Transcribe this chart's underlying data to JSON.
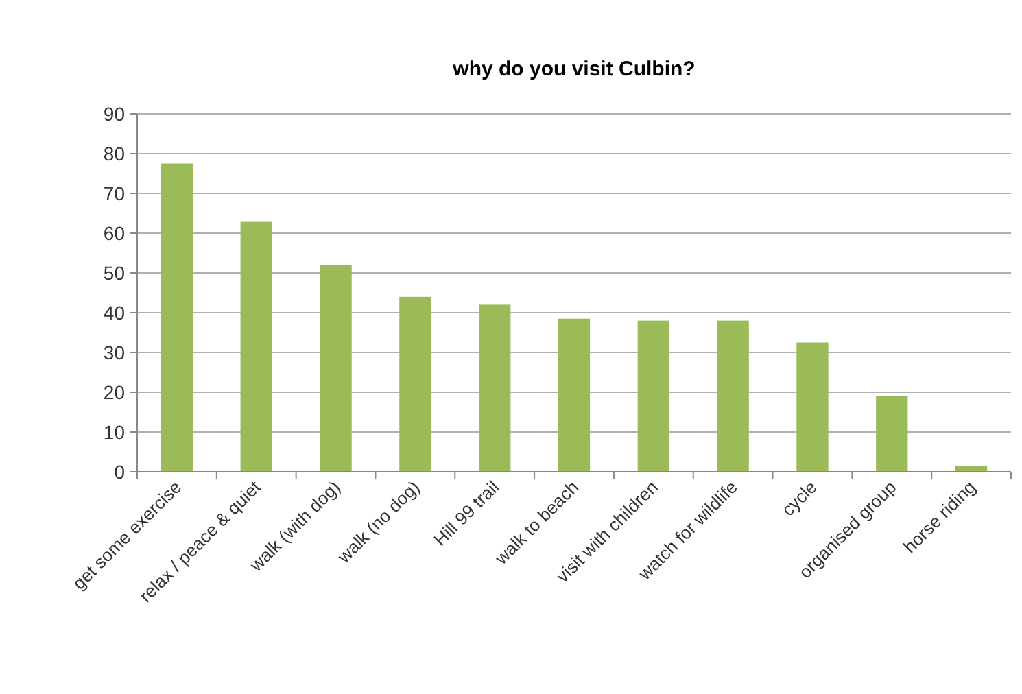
{
  "chart_data": {
    "type": "bar",
    "title": "why do you visit Culbin?",
    "categories": [
      "get some exercise",
      "relax / peace & quiet",
      "walk (with dog)",
      "walk (no dog)",
      "Hill 99 trail",
      "walk to beach",
      "visit with children",
      "watch for wildlife",
      "cycle",
      "organised group",
      "horse riding"
    ],
    "values": [
      77.5,
      63,
      52,
      44,
      42,
      38.5,
      38,
      38,
      32.5,
      19,
      1.5
    ],
    "color": "#9bbb59",
    "ylim": [
      0,
      90
    ],
    "yticks": [
      0,
      10,
      20,
      30,
      40,
      50,
      60,
      70,
      80,
      90
    ],
    "grid": "y"
  }
}
